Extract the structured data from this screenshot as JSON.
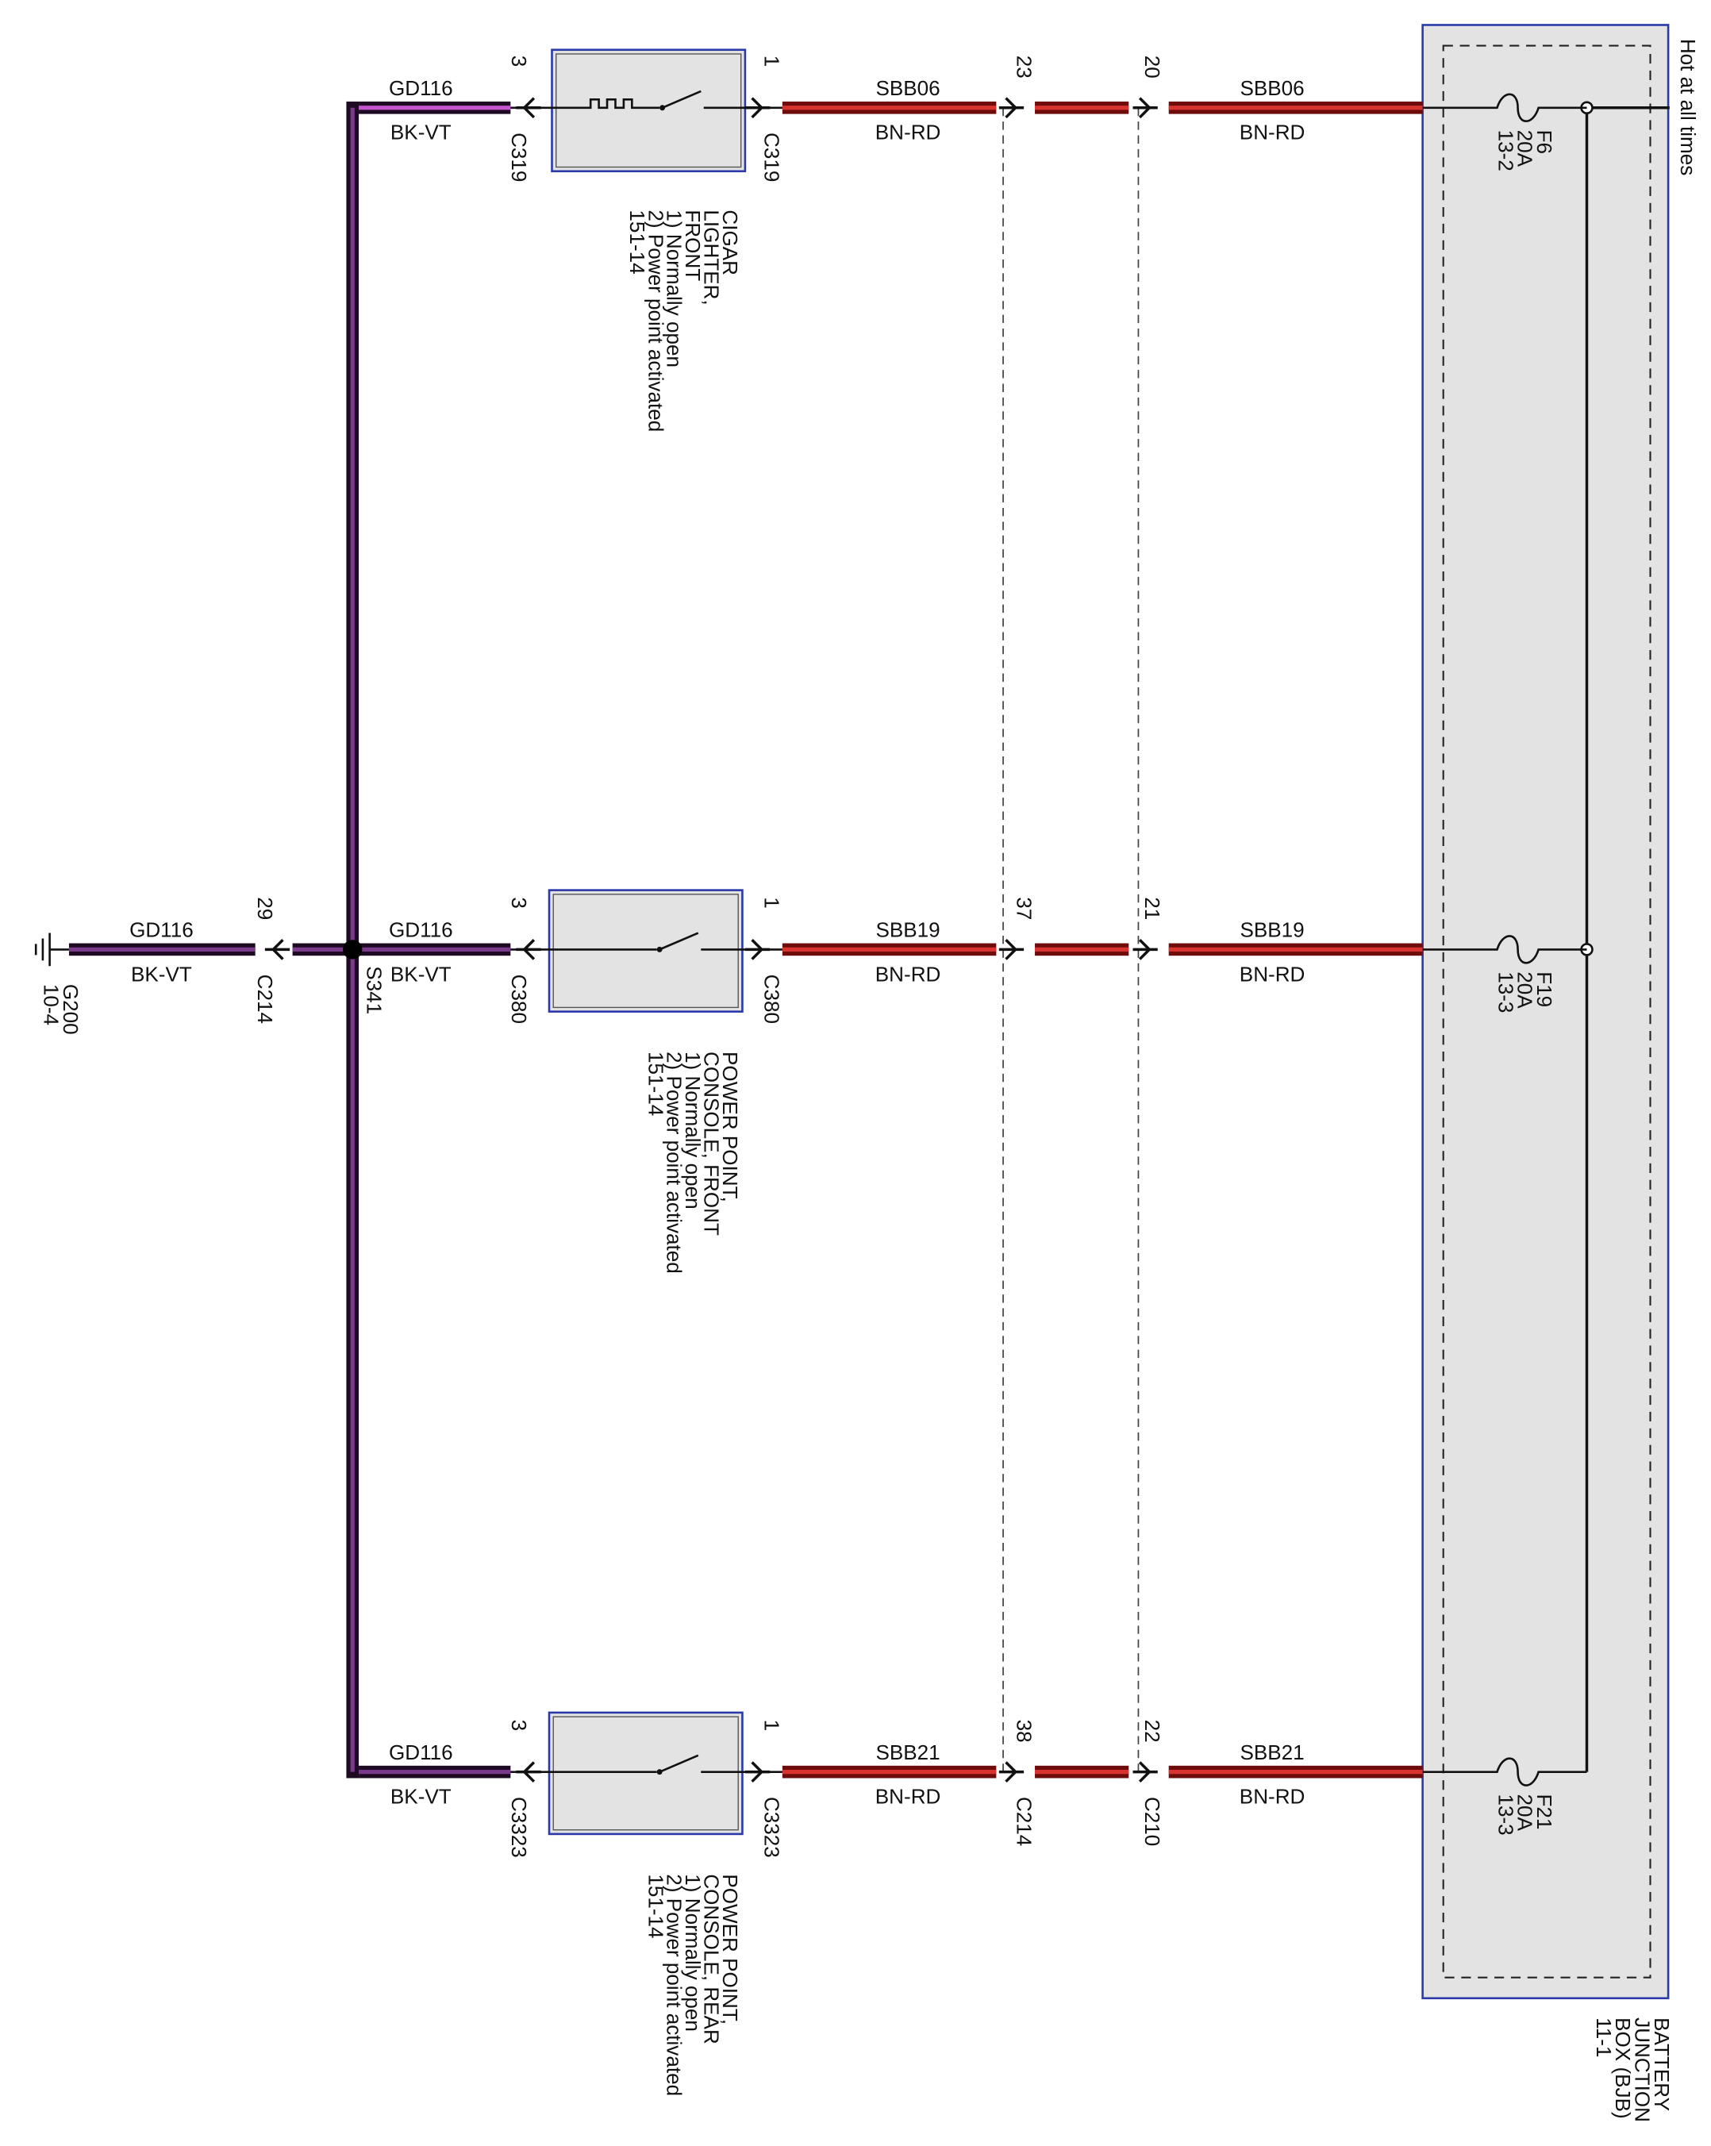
{
  "hot_note": "Hot at all times",
  "bjb": {
    "label": [
      "BATTERY",
      "JUNCTION",
      "BOX (BJB)",
      "11-1"
    ]
  },
  "circuits": [
    {
      "fuse": [
        "F6",
        "20A",
        "13-2"
      ],
      "bjb_wire": {
        "circuit": "SBB06",
        "color": "BN-RD"
      },
      "c210_pin": "20",
      "c214_pin": "23",
      "mid_wire": {
        "circuit": "SBB06",
        "color": "BN-RD"
      },
      "pin_in": "1",
      "connector_in": "C319",
      "pin_out": "3",
      "connector_out": "C319",
      "component": [
        "CIGAR",
        "LIGHTER,",
        "FRONT",
        "1) Normally open",
        "2) Power point activated",
        "151-14"
      ],
      "ground_wire": {
        "circuit": "GD116",
        "color": "BK-VT"
      }
    },
    {
      "fuse": [
        "F19",
        "20A",
        "13-3"
      ],
      "bjb_wire": {
        "circuit": "SBB19",
        "color": "BN-RD"
      },
      "c210_pin": "21",
      "c214_pin": "37",
      "mid_wire": {
        "circuit": "SBB19",
        "color": "BN-RD"
      },
      "pin_in": "1",
      "connector_in": "C380",
      "pin_out": "3",
      "connector_out": "C380",
      "component": [
        "POWER POINT,",
        "CONSOLE, FRONT",
        "1) Normally open",
        "2) Power point activated",
        "151-14"
      ],
      "ground_wire": {
        "circuit": "GD116",
        "color": "BK-VT"
      }
    },
    {
      "fuse": [
        "F21",
        "20A",
        "13-3"
      ],
      "bjb_wire": {
        "circuit": "SBB21",
        "color": "BN-RD"
      },
      "c210_pin": "22",
      "c214_pin": "38",
      "mid_wire": {
        "circuit": "SBB21",
        "color": "BN-RD"
      },
      "pin_in": "1",
      "connector_in": "C3323",
      "pin_out": "3",
      "connector_out": "C3323",
      "component": [
        "POWER POINT,",
        "CONSOLE, REAR",
        "1) Normally open",
        "2) Power point activated",
        "151-14"
      ],
      "ground_wire": {
        "circuit": "GD116",
        "color": "BK-VT"
      }
    }
  ],
  "inline_connectors": {
    "c214": "C214",
    "c210": "C210"
  },
  "splice": "S341",
  "ground_feed": {
    "pin": "29",
    "connector": "C214",
    "wire": {
      "circuit": "GD116",
      "color": "BK-VT"
    }
  },
  "ground": [
    "G200",
    "10-4"
  ]
}
